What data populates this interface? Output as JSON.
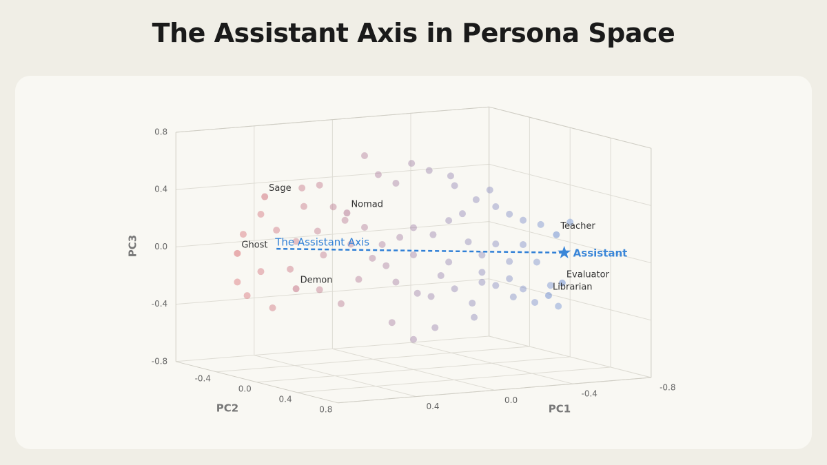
{
  "chart_data": {
    "type": "scatter3d",
    "title": "The Assistant Axis in Persona Space",
    "xlabel": "PC1",
    "ylabel": "PC2",
    "zlabel": "PC3",
    "xlim": [
      -0.8,
      0.8
    ],
    "ylim": [
      -0.8,
      0.8
    ],
    "zlim": [
      -0.8,
      0.8
    ],
    "xticks": [
      0.4,
      {
        "value": 0,
        "label": "0.0"
      },
      -0.4,
      -0.8
    ],
    "yticks": [
      -0.4,
      {
        "value": 0,
        "label": "0.0"
      },
      0.4,
      0.8
    ],
    "zticks": [
      0.8,
      0.4,
      {
        "value": 0,
        "label": "0.0"
      },
      -0.4,
      -0.8
    ],
    "grid": true,
    "colormap": {
      "low": "#6f93d6",
      "high": "#d4737d"
    },
    "points": {
      "x": [
        0.25,
        0.01,
        0.18,
        0.57,
        0.48,
        -0.08,
        -0.19,
        0.09,
        0.41,
        0.56,
        0.78,
        0.7,
        0.87,
        0.9,
        0.85,
        0.72,
        0.48,
        0.37,
        0.28,
        0.14,
        0.09,
        0.11,
        0.0,
        -0.11,
        -0.02,
        -0.09,
        -0.14,
        -0.21,
        -0.3,
        -0.31,
        -0.35,
        -0.42,
        -0.49,
        -0.56,
        -0.62,
        -0.74,
        -0.7,
        -0.65,
        -0.56,
        -0.49,
        -0.42,
        -0.39,
        -0.32,
        -0.25,
        -0.18,
        -0.1,
        0.0,
        0.07,
        0.16,
        0.25,
        0.35,
        0.49,
        0.6,
        0.46,
        0.32,
        -0.28,
        -0.42,
        -0.56,
        -0.63,
        -0.49,
        -0.35,
        -0.18,
        0.0,
        0.21,
        0.63,
        0.78,
        -0.21,
        -0.35,
        -0.51,
        -0.8
      ],
      "y": [
        0,
        0,
        0,
        0,
        0,
        0,
        0,
        0,
        0,
        0,
        0,
        0,
        0,
        0,
        0,
        0,
        0,
        0,
        0,
        0,
        0,
        0,
        0,
        0,
        0,
        0,
        0,
        0,
        0,
        0,
        0,
        0,
        0,
        0,
        0,
        0,
        0,
        0,
        0,
        0,
        0,
        0,
        0,
        0,
        0,
        0,
        0,
        0,
        0,
        0,
        0,
        0,
        0,
        0,
        0,
        0,
        0,
        0,
        0,
        0,
        0,
        0,
        0,
        0,
        0,
        0,
        0,
        0,
        0,
        0
      ],
      "z": [
        0.72,
        0.64,
        0.58,
        0.53,
        0.54,
        0.58,
        0.53,
        0.51,
        0.38,
        0.4,
        0.37,
        0.25,
        0.24,
        -0.09,
        -0.19,
        -0.29,
        -0.19,
        -0.3,
        -0.14,
        -0.06,
        -0.18,
        -0.46,
        -0.59,
        -0.52,
        -0.27,
        -0.3,
        -0.16,
        -0.26,
        -0.37,
        -0.47,
        -0.16,
        -0.26,
        -0.22,
        -0.3,
        -0.4,
        -0.44,
        -0.29,
        0.14,
        0.18,
        0.23,
        0.29,
        0.41,
        0.35,
        0.26,
        0.22,
        0.13,
        0.19,
        0.13,
        0.09,
        0.22,
        0.28,
        0.22,
        0.16,
        0.05,
        0.11,
        0.06,
        0.03,
        0.01,
        -0.12,
        -0.1,
        -0.04,
        -0.07,
        0.0,
        0.0,
        -0.03,
        -0.03,
        0.46,
        -0.23,
        -0.35,
        0.14
      ]
    },
    "personas": [
      {
        "name": "Sage",
        "x": 0.76,
        "y": 0,
        "z": 0.49
      },
      {
        "name": "Nomad",
        "x": 0.34,
        "y": 0,
        "z": 0.33
      },
      {
        "name": "Ghost",
        "x": 0.9,
        "y": 0,
        "z": 0.11
      },
      {
        "name": "Demon",
        "x": 0.6,
        "y": 0,
        "z": -0.17
      },
      {
        "name": "Teacher",
        "x": -0.73,
        "y": 0,
        "z": 0.06
      },
      {
        "name": "Evaluator",
        "x": -0.76,
        "y": 0,
        "z": -0.28
      },
      {
        "name": "Librarian",
        "x": -0.69,
        "y": 0,
        "z": -0.36
      }
    ],
    "axis_line": {
      "label": "The Assistant Axis",
      "color": "#2f7fd6",
      "x": [
        0.7,
        -0.77
      ],
      "y": [
        0,
        0
      ],
      "z": [
        0.12,
        -0.07
      ]
    },
    "highlight": {
      "label": "Assistant",
      "color": "#3a86d8",
      "x": -0.77,
      "y": 0,
      "z": -0.07
    }
  }
}
